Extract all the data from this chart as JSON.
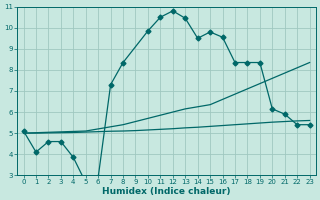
{
  "bg_color": "#c8e8e0",
  "grid_color": "#a0c8c0",
  "line_color": "#006868",
  "xlabel": "Humidex (Indice chaleur)",
  "xlim": [
    -0.5,
    23.5
  ],
  "ylim": [
    3,
    11
  ],
  "xticks": [
    0,
    1,
    2,
    3,
    4,
    5,
    6,
    7,
    8,
    9,
    10,
    11,
    12,
    13,
    14,
    15,
    16,
    17,
    18,
    19,
    20,
    21,
    22,
    23
  ],
  "yticks": [
    3,
    4,
    5,
    6,
    7,
    8,
    9,
    10,
    11
  ],
  "line1_x": [
    0,
    1,
    2,
    3,
    4,
    5,
    6,
    7,
    8,
    10,
    11,
    12,
    13,
    14,
    15,
    16,
    17,
    18,
    19,
    20,
    21,
    22,
    23
  ],
  "line1_y": [
    5.1,
    4.1,
    4.6,
    4.6,
    3.85,
    2.65,
    2.9,
    7.3,
    8.35,
    9.85,
    10.5,
    10.8,
    10.45,
    9.5,
    9.8,
    9.55,
    8.35,
    8.35,
    8.35,
    6.15,
    5.9,
    5.4,
    5.4
  ],
  "line2_x": [
    0,
    1,
    2,
    3,
    4,
    5,
    6,
    7,
    8,
    9,
    10,
    11,
    12,
    13,
    14,
    15,
    16,
    17,
    18,
    19,
    20,
    21,
    22,
    23
  ],
  "line2_y": [
    5.0,
    5.02,
    5.04,
    5.06,
    5.08,
    5.1,
    5.2,
    5.3,
    5.4,
    5.55,
    5.7,
    5.85,
    6.0,
    6.15,
    6.25,
    6.35,
    6.6,
    6.85,
    7.1,
    7.35,
    7.6,
    7.85,
    8.1,
    8.35
  ],
  "line3_x": [
    0,
    1,
    2,
    3,
    4,
    5,
    6,
    7,
    8,
    9,
    10,
    11,
    12,
    13,
    14,
    15,
    16,
    17,
    18,
    19,
    20,
    21,
    22,
    23
  ],
  "line3_y": [
    5.0,
    5.0,
    5.01,
    5.02,
    5.03,
    5.05,
    5.07,
    5.09,
    5.1,
    5.12,
    5.15,
    5.18,
    5.21,
    5.25,
    5.28,
    5.32,
    5.36,
    5.4,
    5.44,
    5.48,
    5.52,
    5.55,
    5.58,
    5.6
  ],
  "marker": "D",
  "markersize": 2.5,
  "linewidth": 0.9,
  "tick_fontsize": 5.0,
  "xlabel_fontsize": 6.5
}
